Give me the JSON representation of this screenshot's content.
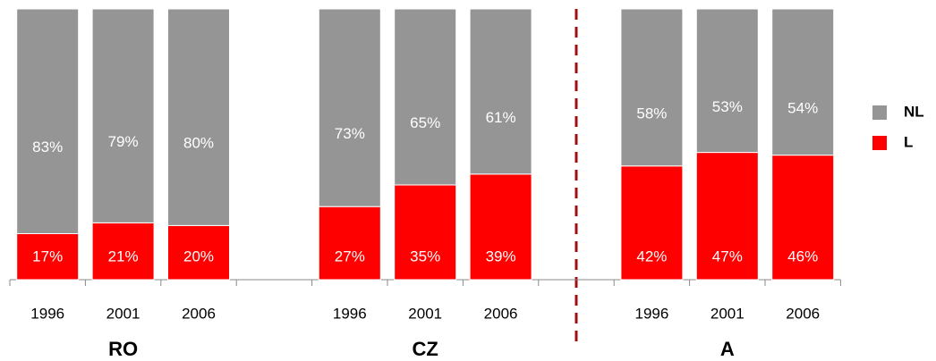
{
  "chart_data": {
    "type": "stacked_bar",
    "categories": [
      "1996",
      "2001",
      "2006",
      null,
      "1996",
      "2001",
      "2006",
      null,
      "1996",
      "2001",
      "2006"
    ],
    "groups": [
      "RO",
      "CZ",
      "A"
    ],
    "series": [
      {
        "name": "L",
        "color": "#ff0000",
        "values": [
          17,
          21,
          20,
          null,
          27,
          35,
          39,
          null,
          42,
          47,
          46
        ],
        "value_labels": [
          "17%",
          "21%",
          "20%",
          null,
          "27%",
          "35%",
          "39%",
          null,
          "42%",
          "47%",
          "46%"
        ]
      },
      {
        "name": "NL",
        "color": "#959595",
        "values": [
          83,
          79,
          80,
          null,
          73,
          65,
          61,
          null,
          58,
          53,
          54
        ],
        "value_labels": [
          "83%",
          "79%",
          "80%",
          null,
          "73%",
          "65%",
          "61%",
          null,
          "58%",
          "53%",
          "54%"
        ]
      }
    ],
    "ylim": [
      0,
      100
    ]
  }
}
